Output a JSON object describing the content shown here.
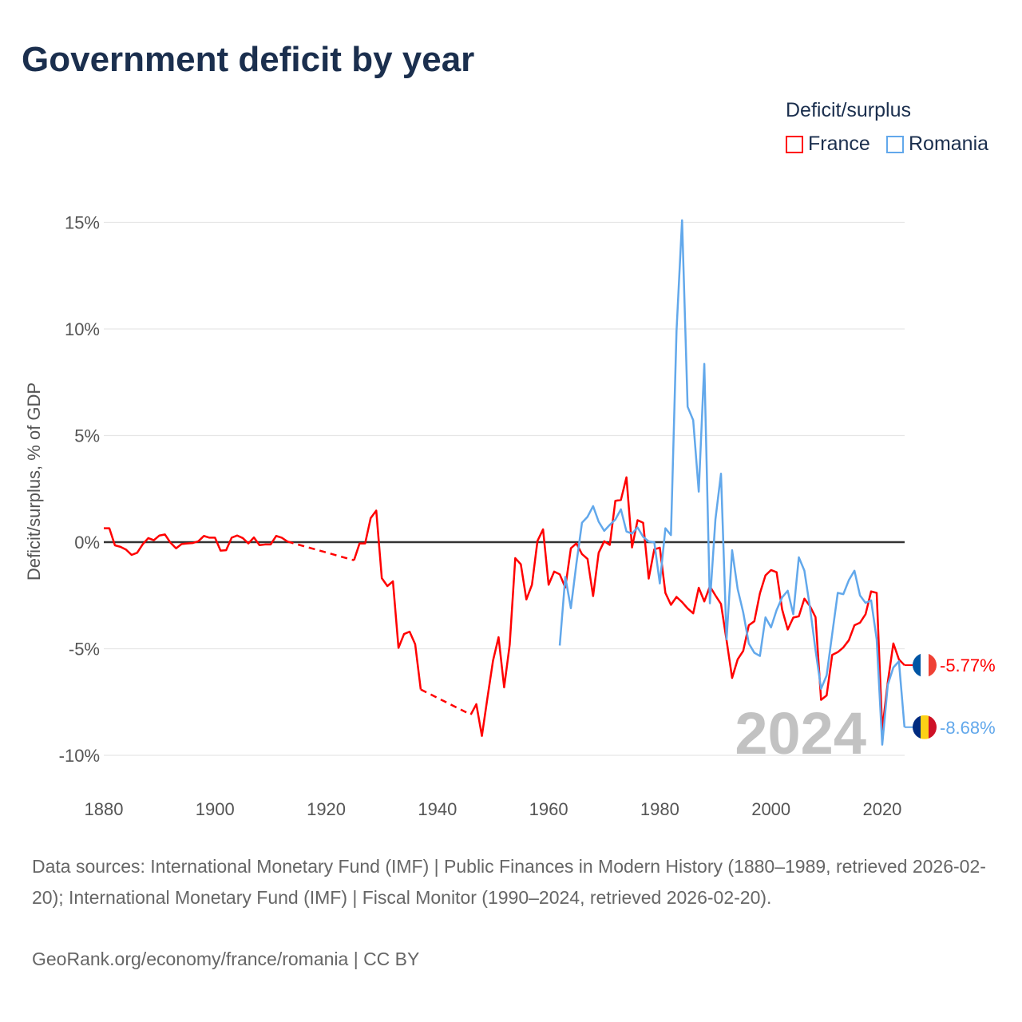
{
  "title": "Government deficit by year",
  "legend": {
    "title": "Deficit/surplus",
    "items": [
      "France",
      "Romania"
    ]
  },
  "footer": {
    "sources": "Data sources: International Monetary Fund (IMF) | Public Finances in Modern History (1880–1989, retrieved 2026-02-20); International Monetary Fund (IMF) | Fiscal Monitor (1990–2024, retrieved 2026-02-20).",
    "link": "GeoRank.org/economy/france/romania | CC BY"
  },
  "chart_data": {
    "type": "line",
    "title": "Government deficit by year",
    "ylabel": "Deficit/surplus, % of GDP",
    "xlabel": "",
    "xlim": [
      1880,
      2024
    ],
    "ylim": [
      -11.5,
      15.5
    ],
    "xticks": [
      1880,
      1900,
      1920,
      1940,
      1960,
      1980,
      2000,
      2020
    ],
    "xtick_labels": [
      "1880",
      "1900",
      "1920",
      "1940",
      "1960",
      "1980",
      "2000",
      "2020"
    ],
    "yticks": [
      15,
      10,
      5,
      0,
      -5,
      -10
    ],
    "ytick_labels": [
      "15%",
      "10%",
      "5%",
      "0%",
      "-5%",
      "-10%"
    ],
    "current_year_label": "2024",
    "legend_position": "top-right",
    "series": [
      {
        "name": "France",
        "color": "#ff0000",
        "end_label": "-5.77%",
        "flag": [
          "#0055a4",
          "#ffffff",
          "#ef4135"
        ],
        "points": [
          [
            1880,
            0.65
          ],
          [
            1881,
            0.65
          ],
          [
            1882,
            -0.15
          ],
          [
            1883,
            -0.22
          ],
          [
            1884,
            -0.35
          ],
          [
            1885,
            -0.6
          ],
          [
            1886,
            -0.5
          ],
          [
            1887,
            -0.1
          ],
          [
            1888,
            0.19
          ],
          [
            1889,
            0.09
          ],
          [
            1890,
            0.31
          ],
          [
            1891,
            0.36
          ],
          [
            1892,
            -0.03
          ],
          [
            1893,
            -0.29
          ],
          [
            1894,
            -0.09
          ],
          [
            1895,
            -0.06
          ],
          [
            1896,
            -0.04
          ],
          [
            1897,
            0.04
          ],
          [
            1898,
            0.29
          ],
          [
            1899,
            0.21
          ],
          [
            1900,
            0.21
          ],
          [
            1901,
            -0.4
          ],
          [
            1902,
            -0.38
          ],
          [
            1903,
            0.21
          ],
          [
            1904,
            0.31
          ],
          [
            1905,
            0.19
          ],
          [
            1906,
            -0.06
          ],
          [
            1907,
            0.22
          ],
          [
            1908,
            -0.14
          ],
          [
            1909,
            -0.11
          ],
          [
            1910,
            -0.11
          ],
          [
            1911,
            0.29
          ],
          [
            1912,
            0.21
          ],
          [
            1913,
            0.03
          ],
          [
            1925,
            -0.85
          ],
          [
            1926,
            -0.06
          ],
          [
            1927,
            -0.06
          ],
          [
            1928,
            1.13
          ],
          [
            1929,
            1.48
          ],
          [
            1930,
            -1.69
          ],
          [
            1931,
            -2.06
          ],
          [
            1932,
            -1.84
          ],
          [
            1933,
            -4.96
          ],
          [
            1934,
            -4.31
          ],
          [
            1935,
            -4.2
          ],
          [
            1936,
            -4.79
          ],
          [
            1937,
            -6.91
          ],
          [
            1946,
            -8.09
          ],
          [
            1947,
            -7.6
          ],
          [
            1948,
            -9.09
          ],
          [
            1949,
            -7.3
          ],
          [
            1950,
            -5.56
          ],
          [
            1951,
            -4.46
          ],
          [
            1952,
            -6.81
          ],
          [
            1953,
            -4.81
          ],
          [
            1954,
            -0.75
          ],
          [
            1955,
            -1.04
          ],
          [
            1956,
            -2.69
          ],
          [
            1957,
            -2.0
          ],
          [
            1958,
            0.06
          ],
          [
            1959,
            0.6
          ],
          [
            1960,
            -2.0
          ],
          [
            1961,
            -1.38
          ],
          [
            1962,
            -1.51
          ],
          [
            1963,
            -2.13
          ],
          [
            1964,
            -0.29
          ],
          [
            1965,
            -0.06
          ],
          [
            1966,
            -0.56
          ],
          [
            1967,
            -0.79
          ],
          [
            1968,
            -2.53
          ],
          [
            1969,
            -0.5
          ],
          [
            1970,
            0.04
          ],
          [
            1971,
            -0.13
          ],
          [
            1972,
            1.94
          ],
          [
            1973,
            1.98
          ],
          [
            1974,
            3.04
          ],
          [
            1975,
            -0.25
          ],
          [
            1976,
            1.03
          ],
          [
            1977,
            0.91
          ],
          [
            1978,
            -1.71
          ],
          [
            1979,
            -0.34
          ],
          [
            1980,
            -0.26
          ],
          [
            1981,
            -2.38
          ],
          [
            1982,
            -2.94
          ],
          [
            1983,
            -2.57
          ],
          [
            1984,
            -2.81
          ],
          [
            1985,
            -3.11
          ],
          [
            1986,
            -3.34
          ],
          [
            1987,
            -2.14
          ],
          [
            1988,
            -2.78
          ],
          [
            1989,
            -2.07
          ],
          [
            1990,
            -2.5
          ],
          [
            1991,
            -2.9
          ],
          [
            1992,
            -4.6
          ],
          [
            1993,
            -6.37
          ],
          [
            1994,
            -5.5
          ],
          [
            1995,
            -5.1
          ],
          [
            1996,
            -3.9
          ],
          [
            1997,
            -3.71
          ],
          [
            1998,
            -2.4
          ],
          [
            1999,
            -1.56
          ],
          [
            2000,
            -1.31
          ],
          [
            2001,
            -1.41
          ],
          [
            2002,
            -3.16
          ],
          [
            2003,
            -4.1
          ],
          [
            2004,
            -3.54
          ],
          [
            2005,
            -3.48
          ],
          [
            2006,
            -2.65
          ],
          [
            2007,
            -3.0
          ],
          [
            2008,
            -3.52
          ],
          [
            2009,
            -7.4
          ],
          [
            2010,
            -7.19
          ],
          [
            2011,
            -5.29
          ],
          [
            2012,
            -5.16
          ],
          [
            2013,
            -4.94
          ],
          [
            2014,
            -4.6
          ],
          [
            2015,
            -3.9
          ],
          [
            2016,
            -3.78
          ],
          [
            2017,
            -3.38
          ],
          [
            2018,
            -2.31
          ],
          [
            2019,
            -2.38
          ],
          [
            2020,
            -8.81
          ],
          [
            2021,
            -6.56
          ],
          [
            2022,
            -4.75
          ],
          [
            2023,
            -5.5
          ],
          [
            2024,
            -5.77
          ]
        ]
      },
      {
        "name": "Romania",
        "color": "#62a8eb",
        "end_label": "-8.68%",
        "flag": [
          "#002b7f",
          "#fcd116",
          "#ce1126"
        ],
        "points": [
          [
            1962,
            -4.85
          ],
          [
            1963,
            -1.63
          ],
          [
            1964,
            -3.1
          ],
          [
            1965,
            -1.0
          ],
          [
            1966,
            0.91
          ],
          [
            1967,
            1.19
          ],
          [
            1968,
            1.69
          ],
          [
            1969,
            0.96
          ],
          [
            1970,
            0.53
          ],
          [
            1971,
            0.81
          ],
          [
            1972,
            1.06
          ],
          [
            1973,
            1.54
          ],
          [
            1974,
            0.5
          ],
          [
            1975,
            0.4
          ],
          [
            1976,
            0.69
          ],
          [
            1977,
            0.25
          ],
          [
            1978,
            0.03
          ],
          [
            1979,
            0.0
          ],
          [
            1980,
            -1.94
          ],
          [
            1981,
            0.65
          ],
          [
            1982,
            0.33
          ],
          [
            1983,
            9.9
          ],
          [
            1984,
            15.1
          ],
          [
            1985,
            6.35
          ],
          [
            1986,
            5.72
          ],
          [
            1987,
            2.37
          ],
          [
            1988,
            8.36
          ],
          [
            1989,
            -2.87
          ],
          [
            1990,
            1.07
          ],
          [
            1991,
            3.21
          ],
          [
            1992,
            -4.56
          ],
          [
            1993,
            -0.38
          ],
          [
            1994,
            -2.2
          ],
          [
            1995,
            -3.3
          ],
          [
            1996,
            -4.75
          ],
          [
            1997,
            -5.19
          ],
          [
            1998,
            -5.34
          ],
          [
            1999,
            -3.53
          ],
          [
            2000,
            -4.0
          ],
          [
            2001,
            -3.19
          ],
          [
            2002,
            -2.59
          ],
          [
            2003,
            -2.28
          ],
          [
            2004,
            -3.38
          ],
          [
            2005,
            -0.71
          ],
          [
            2006,
            -1.34
          ],
          [
            2007,
            -3.06
          ],
          [
            2008,
            -5.06
          ],
          [
            2009,
            -6.88
          ],
          [
            2010,
            -6.25
          ],
          [
            2011,
            -4.31
          ],
          [
            2012,
            -2.38
          ],
          [
            2013,
            -2.44
          ],
          [
            2014,
            -1.78
          ],
          [
            2015,
            -1.34
          ],
          [
            2016,
            -2.5
          ],
          [
            2017,
            -2.85
          ],
          [
            2018,
            -2.73
          ],
          [
            2019,
            -4.56
          ],
          [
            2020,
            -9.5
          ],
          [
            2021,
            -6.69
          ],
          [
            2022,
            -5.88
          ],
          [
            2023,
            -5.59
          ],
          [
            2024,
            -8.68
          ]
        ]
      }
    ]
  }
}
